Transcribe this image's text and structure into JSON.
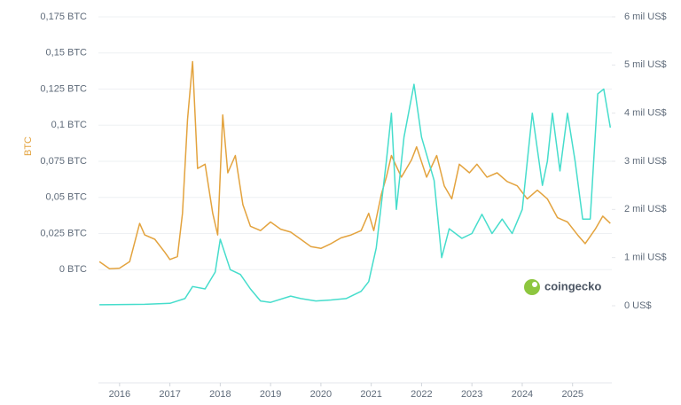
{
  "chart_data": {
    "type": "line",
    "y_label": "BTC",
    "watermark": "coingecko",
    "xlim": [
      2015.58,
      2025.78
    ],
    "xticks": [
      2016,
      2017,
      2018,
      2019,
      2020,
      2021,
      2022,
      2023,
      2024,
      2025
    ],
    "ylim": [
      -0.025,
      0.175
    ],
    "yticks": [
      {
        "value": 0,
        "label": "0 BTC"
      },
      {
        "value": 0.025,
        "label": "0,025 BTC"
      },
      {
        "value": 0.05,
        "label": "0,05 BTC"
      },
      {
        "value": 0.075,
        "label": "0,075 BTC"
      },
      {
        "value": 0.1,
        "label": "0,1 BTC"
      },
      {
        "value": 0.125,
        "label": "0,125 BTC"
      },
      {
        "value": 0.15,
        "label": "0,15 BTC"
      },
      {
        "value": 0.175,
        "label": "0,175 BTC"
      }
    ],
    "y2lim": [
      0,
      6
    ],
    "y2ticks": [
      {
        "value": 0,
        "label": "0 US$"
      },
      {
        "value": 1,
        "label": "1 mil US$"
      },
      {
        "value": 2,
        "label": "2 mil US$"
      },
      {
        "value": 3,
        "label": "3 mil US$"
      },
      {
        "value": 4,
        "label": "4 mil US$"
      },
      {
        "value": 5,
        "label": "5 mil US$"
      },
      {
        "value": 6,
        "label": "6 mil US$"
      }
    ],
    "grid": true,
    "series": [
      {
        "color": "#e3a33e",
        "x": [
          2015.6,
          2015.8,
          2016.0,
          2016.2,
          2016.4,
          2016.5,
          2016.7,
          2016.9,
          2017.0,
          2017.15,
          2017.25,
          2017.35,
          2017.45,
          2017.55,
          2017.7,
          2017.85,
          2017.95,
          2018.05,
          2018.15,
          2018.3,
          2018.45,
          2018.6,
          2018.8,
          2019.0,
          2019.2,
          2019.4,
          2019.6,
          2019.8,
          2020.0,
          2020.2,
          2020.4,
          2020.6,
          2020.8,
          2020.95,
          2021.05,
          2021.2,
          2021.3,
          2021.4,
          2021.6,
          2021.8,
          2021.9,
          2022.1,
          2022.3,
          2022.45,
          2022.6,
          2022.75,
          2022.95,
          2023.1,
          2023.3,
          2023.5,
          2023.7,
          2023.9,
          2024.1,
          2024.3,
          2024.5,
          2024.7,
          2024.9,
          2025.1,
          2025.25,
          2025.45,
          2025.6,
          2025.75
        ],
        "values": [
          0.0055,
          0.0006,
          0.001,
          0.0055,
          0.032,
          0.024,
          0.021,
          0.012,
          0.007,
          0.009,
          0.039,
          0.104,
          0.144,
          0.07,
          0.073,
          0.039,
          0.024,
          0.107,
          0.067,
          0.079,
          0.045,
          0.03,
          0.027,
          0.033,
          0.028,
          0.026,
          0.021,
          0.016,
          0.0147,
          0.018,
          0.022,
          0.024,
          0.027,
          0.039,
          0.027,
          0.052,
          0.064,
          0.079,
          0.064,
          0.076,
          0.085,
          0.064,
          0.079,
          0.058,
          0.049,
          0.073,
          0.067,
          0.073,
          0.064,
          0.067,
          0.061,
          0.058,
          0.049,
          0.055,
          0.049,
          0.036,
          0.033,
          0.024,
          0.018,
          0.028,
          0.037,
          0.032
        ]
      },
      {
        "color": "#46ddcc",
        "axis": "y2",
        "x": [
          2015.6,
          2016.5,
          2017.0,
          2017.3,
          2017.45,
          2017.7,
          2017.9,
          2018.0,
          2018.2,
          2018.4,
          2018.6,
          2018.8,
          2019.0,
          2019.4,
          2019.6,
          2019.9,
          2020.2,
          2020.5,
          2020.8,
          2020.95,
          2021.1,
          2021.3,
          2021.4,
          2021.5,
          2021.65,
          2021.85,
          2022.0,
          2022.25,
          2022.4,
          2022.55,
          2022.8,
          2023.0,
          2023.2,
          2023.4,
          2023.6,
          2023.8,
          2024.0,
          2024.2,
          2024.4,
          2024.5,
          2024.6,
          2024.75,
          2024.9,
          2025.05,
          2025.2,
          2025.35,
          2025.5,
          2025.62,
          2025.75
        ],
        "values": [
          0.02,
          0.03,
          0.05,
          0.15,
          0.4,
          0.35,
          0.7,
          1.38,
          0.75,
          0.65,
          0.35,
          0.1,
          0.07,
          0.2,
          0.15,
          0.1,
          0.12,
          0.15,
          0.3,
          0.5,
          1.2,
          3.0,
          4.0,
          2.0,
          3.5,
          4.6,
          3.5,
          2.6,
          1.0,
          1.6,
          1.4,
          1.5,
          1.9,
          1.5,
          1.8,
          1.5,
          2.0,
          4.0,
          2.5,
          3.0,
          4.0,
          2.8,
          4.0,
          3.0,
          1.8,
          1.8,
          4.4,
          4.5,
          3.7
        ]
      }
    ]
  }
}
